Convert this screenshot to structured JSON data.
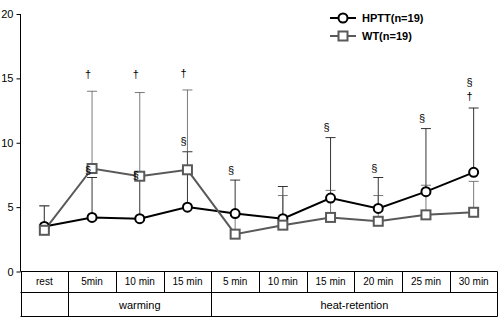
{
  "chart_data": {
    "type": "line",
    "categories": [
      "rest",
      "5min",
      "10 min",
      "15 min",
      "5 min",
      "10 min",
      "15 min",
      "20 min",
      "25 min",
      "30 min"
    ],
    "category_groups": [
      null,
      "warming",
      "warming",
      "warming",
      "heat-retention",
      "heat-retention",
      "heat-retention",
      "heat-retention",
      "heat-retention",
      "heat-retention"
    ],
    "series": [
      {
        "name": "HPTT(n=19)",
        "color": "#000000",
        "marker": "circle",
        "line_style": "solid",
        "values": [
          3.5,
          4.2,
          4.1,
          5.0,
          4.5,
          4.1,
          5.7,
          4.9,
          6.2,
          7.7
        ],
        "errors": [
          1.6,
          3.1,
          3.0,
          4.3,
          2.6,
          2.5,
          4.7,
          2.4,
          4.9,
          5.0
        ]
      },
      {
        "name": "WT(n=19)",
        "color": "#595959",
        "marker": "square",
        "line_style": "solid",
        "values": [
          3.2,
          8.0,
          7.4,
          7.9,
          2.9,
          3.6,
          4.2,
          3.9,
          4.4,
          4.6
        ],
        "errors": [
          1.9,
          6.0,
          6.5,
          6.2,
          1.6,
          2.3,
          2.1,
          2.0,
          2.3,
          2.4
        ]
      }
    ],
    "annotations": [
      {
        "text": "†",
        "x": 1,
        "y": 15.0
      },
      {
        "text": "†",
        "x": 2,
        "y": 15.0
      },
      {
        "text": "†",
        "x": 3,
        "y": 15.1
      },
      {
        "text": "§",
        "x": 1,
        "y": 7.6
      },
      {
        "text": "§",
        "x": 2,
        "y": 7.2
      },
      {
        "text": "§",
        "x": 3,
        "y": 9.8
      },
      {
        "text": "§",
        "x": 4,
        "y": 7.6
      },
      {
        "text": "§",
        "x": 6,
        "y": 10.9
      },
      {
        "text": "§",
        "x": 7,
        "y": 7.7
      },
      {
        "text": "§",
        "x": 8,
        "y": 11.6
      },
      {
        "text": "§",
        "x": 9,
        "y": 14.4
      },
      {
        "text": "†",
        "x": 9,
        "y": 13.3
      }
    ],
    "ylim": [
      0,
      20
    ],
    "yticks": [
      0,
      5,
      10,
      15,
      20
    ],
    "grid": false,
    "legend": "upper right"
  }
}
